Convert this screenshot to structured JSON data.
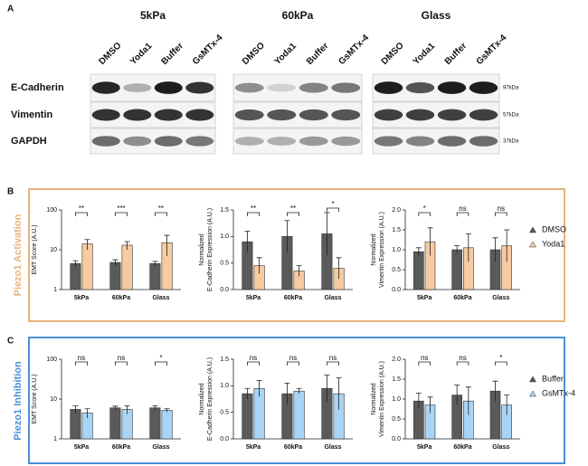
{
  "panel_labels": [
    "A",
    "B",
    "C"
  ],
  "blots": {
    "conditions": [
      "5kPa",
      "60kPa",
      "Glass"
    ],
    "lanes": [
      "DMSO",
      "Yoda1",
      "Buffer",
      "GsMTx-4"
    ],
    "rows": [
      "E-Cadherin",
      "Vimentin",
      "GAPDH"
    ],
    "sizes": [
      "97kDa",
      "57kDa",
      "37kDa"
    ]
  },
  "side_titles": [
    "Piezo1 Activation",
    "Piezo1 Inhibition"
  ],
  "chart_data": [
    {
      "type": "bar",
      "ylabel": [
        "EMT Score (A.U.)"
      ],
      "log": true,
      "categories": [
        "5kPa",
        "60kPa",
        "Glass"
      ],
      "ylim": [
        1,
        100
      ],
      "yticks": [
        1,
        10,
        100
      ],
      "series": [
        {
          "color": "#5a5a5a",
          "values": [
            4.5,
            4.8,
            4.5
          ],
          "errors": [
            0.8,
            0.8,
            0.6
          ]
        },
        {
          "color": "#f6cba0",
          "values": [
            14,
            13,
            15
          ],
          "errors": [
            4,
            3,
            8
          ]
        }
      ],
      "annotations": [
        "**",
        "***",
        "**"
      ]
    },
    {
      "type": "bar",
      "ylabel": [
        "Normalized",
        "E-Cadherin Expression (A.U.)"
      ],
      "categories": [
        "5kPa",
        "60kPa",
        "Glass"
      ],
      "ylim": [
        0,
        1.5
      ],
      "yticks": [
        {
          "value": 0,
          "label": "0.0"
        },
        0.5,
        {
          "value": 1,
          "label": "1.0"
        },
        1.5
      ],
      "series": [
        {
          "color": "#5a5a5a",
          "values": [
            0.9,
            1.0,
            1.05
          ],
          "errors": [
            0.2,
            0.3,
            0.4
          ]
        },
        {
          "color": "#f6cba0",
          "values": [
            0.45,
            0.35,
            0.4
          ],
          "errors": [
            0.15,
            0.1,
            0.2
          ]
        }
      ],
      "annotations": [
        "**",
        "**",
        "*"
      ]
    },
    {
      "type": "bar",
      "ylabel": [
        "Normalized",
        "Vimentin Expression (A.U.)"
      ],
      "categories": [
        "5kPa",
        "60kPa",
        "Glass"
      ],
      "ylim": [
        0,
        2
      ],
      "yticks": [
        {
          "value": 0,
          "label": "0.0"
        },
        0.5,
        {
          "value": 1,
          "label": "1.0"
        },
        1.5,
        {
          "value": 2,
          "label": "2.0"
        }
      ],
      "series": [
        {
          "name": "DMSO",
          "color": "#5a5a5a",
          "values": [
            0.95,
            1.0,
            1.0
          ],
          "errors": [
            0.1,
            0.1,
            0.3
          ]
        },
        {
          "name": "Yoda1",
          "color": "#f6cba0",
          "values": [
            1.2,
            1.05,
            1.1
          ],
          "errors": [
            0.35,
            0.35,
            0.4
          ]
        }
      ],
      "annotations": [
        "*",
        "ns",
        "ns"
      ]
    },
    {
      "type": "bar",
      "ylabel": [
        "EMT Score (A.U.)"
      ],
      "log": true,
      "categories": [
        "5kPa",
        "60kPa",
        "Glass"
      ],
      "ylim": [
        1,
        100
      ],
      "yticks": [
        1,
        10,
        100
      ],
      "series": [
        {
          "color": "#5a5a5a",
          "values": [
            5.5,
            6,
            6
          ],
          "errors": [
            1.2,
            0.6,
            0.8
          ]
        },
        {
          "color": "#a9d4f5",
          "values": [
            4.5,
            5.5,
            5.2
          ],
          "errors": [
            1.2,
            1.3,
            0.5
          ]
        }
      ],
      "annotations": [
        "ns",
        "ns",
        "*"
      ]
    },
    {
      "type": "bar",
      "ylabel": [
        "Normalized",
        "E-Cadherin Expression (A.U.)"
      ],
      "categories": [
        "5kPa",
        "60kPa",
        "Glass"
      ],
      "ylim": [
        0,
        1.5
      ],
      "yticks": [
        {
          "value": 0,
          "label": "0.0"
        },
        0.5,
        {
          "value": 1,
          "label": "1.0"
        },
        1.5
      ],
      "series": [
        {
          "color": "#5a5a5a",
          "values": [
            0.85,
            0.85,
            0.95
          ],
          "errors": [
            0.1,
            0.2,
            0.25
          ]
        },
        {
          "color": "#a9d4f5",
          "values": [
            0.95,
            0.9,
            0.85
          ],
          "errors": [
            0.15,
            0.05,
            0.3
          ]
        }
      ],
      "annotations": [
        "ns",
        "ns",
        "ns"
      ]
    },
    {
      "type": "bar",
      "ylabel": [
        "Normalized",
        "Vimentin Expression (A.U.)"
      ],
      "categories": [
        "5kPa",
        "60kPa",
        "Glass"
      ],
      "ylim": [
        0,
        2
      ],
      "yticks": [
        {
          "value": 0,
          "label": "0.0"
        },
        0.5,
        {
          "value": 1,
          "label": "1.0"
        },
        1.5,
        {
          "value": 2,
          "label": "2.0"
        }
      ],
      "series": [
        {
          "name": "Buffer",
          "color": "#5a5a5a",
          "values": [
            0.95,
            1.1,
            1.2
          ],
          "errors": [
            0.2,
            0.25,
            0.25
          ]
        },
        {
          "name": "GsMTx-4",
          "color": "#a9d4f5",
          "values": [
            0.85,
            0.95,
            0.85
          ],
          "errors": [
            0.2,
            0.35,
            0.25
          ]
        }
      ],
      "annotations": [
        "ns",
        "ns",
        "*"
      ]
    }
  ]
}
